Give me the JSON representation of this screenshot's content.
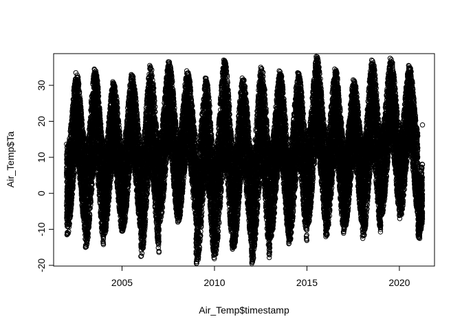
{
  "chart_data": {
    "type": "scatter",
    "title": "",
    "xlabel": "Air_Temp$timestamp",
    "ylabel": "Air_Temp$Ta",
    "x_ticks": [
      2005,
      2010,
      2015,
      2020
    ],
    "y_ticks": [
      -20,
      -10,
      0,
      10,
      20,
      30
    ],
    "xlim": [
      2001.3,
      2021.9
    ],
    "ylim": [
      -20.2,
      38.8
    ],
    "x_range_data": [
      2002.0,
      2021.25
    ],
    "grid": false,
    "legend": "none",
    "marker": "open-circle",
    "marker_color": "#000000",
    "series": [
      {
        "x_year_start": [
          2002,
          2003,
          2004,
          2005,
          2006,
          2007,
          2008,
          2009,
          2010,
          2011,
          2012,
          2013,
          2014,
          2015,
          2016,
          2017,
          2018,
          2019,
          2020,
          2021
        ],
        "annual_max": [
          33.5,
          34.5,
          31,
          33,
          35.5,
          36.5,
          34,
          32,
          37,
          32,
          35,
          34,
          33.5,
          38,
          34.5,
          31.5,
          37,
          37.5,
          35.5,
          19
        ],
        "annual_min": [
          -11.5,
          -15,
          -11.5,
          -10.5,
          -17.5,
          -8,
          -8,
          -19.5,
          -17,
          -15,
          -19.5,
          -12.5,
          -14,
          -9,
          -12,
          -10,
          -12.5,
          -6,
          -7,
          -12.5
        ]
      }
    ]
  }
}
